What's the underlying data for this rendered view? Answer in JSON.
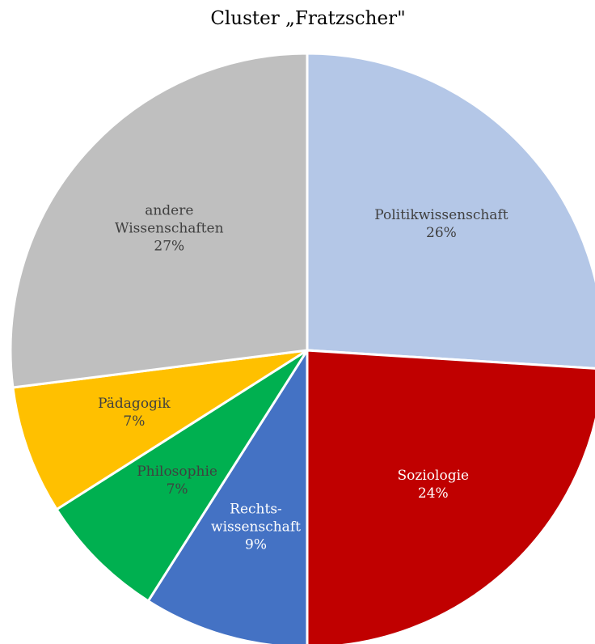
{
  "chart_data": {
    "type": "pie",
    "title": "Cluster „Fratzscher\"",
    "slices": [
      {
        "label_lines": [
          "Politikwissenschaft"
        ],
        "percent_label": "26%",
        "value": 26,
        "color": "#B4C7E7",
        "text_color": "#404040"
      },
      {
        "label_lines": [
          "Soziologie"
        ],
        "percent_label": "24%",
        "value": 24,
        "color": "#C00000",
        "text_color": "#FFFFFF"
      },
      {
        "label_lines": [
          "Rechts-",
          "wissenschaft"
        ],
        "percent_label": "9%",
        "value": 9,
        "color": "#4472C4",
        "text_color": "#FFFFFF"
      },
      {
        "label_lines": [
          "Philosophie"
        ],
        "percent_label": "7%",
        "value": 7,
        "color": "#00B050",
        "text_color": "#404040"
      },
      {
        "label_lines": [
          "Pädagogik"
        ],
        "percent_label": "7%",
        "value": 7,
        "color": "#FFC000",
        "text_color": "#404040"
      },
      {
        "label_lines": [
          "andere",
          "Wissenschaften"
        ],
        "percent_label": "27%",
        "value": 27,
        "color": "#BFBFBF",
        "text_color": "#404040"
      }
    ]
  }
}
